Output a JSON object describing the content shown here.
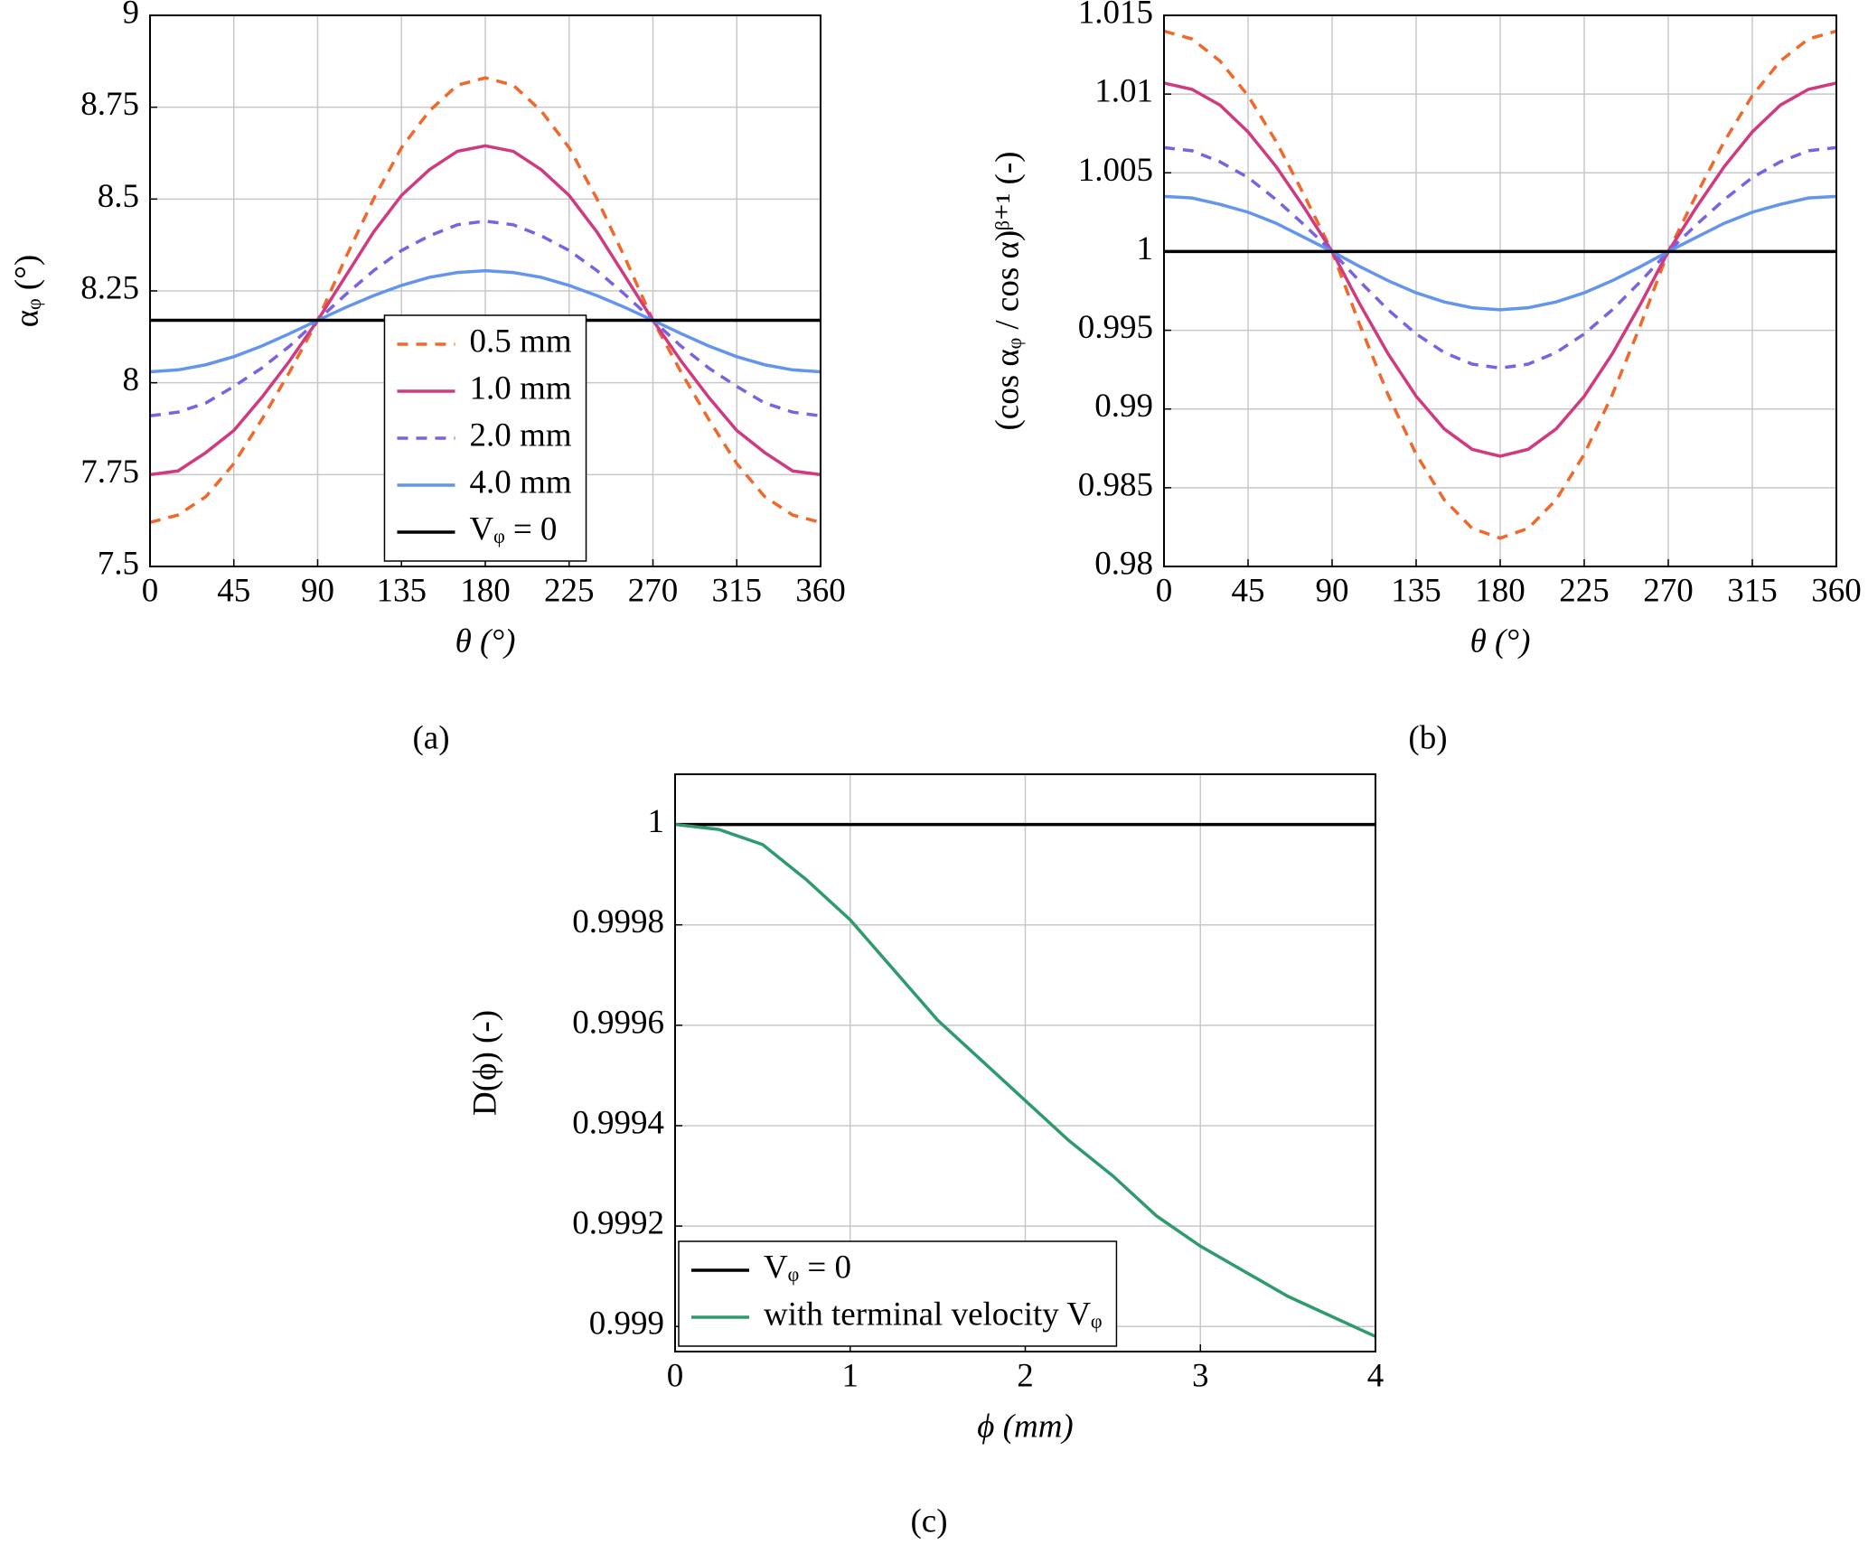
{
  "chart_data": [
    {
      "type": "line",
      "caption": "(a)",
      "xlabel": "θ (°)",
      "ylabel": "αᵩ (°)",
      "xlim": [
        0,
        360
      ],
      "ylim": [
        7.5,
        9
      ],
      "xticks": [
        0,
        45,
        90,
        135,
        180,
        225,
        270,
        315,
        360
      ],
      "yticks": [
        7.5,
        7.75,
        8,
        8.25,
        8.5,
        8.75,
        9
      ],
      "grid": true,
      "legend": "lower center",
      "x": [
        0,
        15,
        30,
        45,
        60,
        75,
        90,
        105,
        120,
        135,
        150,
        165,
        180,
        195,
        210,
        225,
        240,
        255,
        270,
        285,
        300,
        315,
        330,
        345,
        360
      ],
      "series": [
        {
          "name": "0.5 mm",
          "color": "#f0682a",
          "style": "dashed",
          "values": [
            7.62,
            7.64,
            7.69,
            7.78,
            7.9,
            8.03,
            8.17,
            8.34,
            8.5,
            8.64,
            8.74,
            8.81,
            8.83,
            8.81,
            8.74,
            8.64,
            8.5,
            8.34,
            8.17,
            8.03,
            7.9,
            7.78,
            7.69,
            7.64,
            7.62
          ]
        },
        {
          "name": "1.0 mm",
          "color": "#d03a7e",
          "style": "solid",
          "values": [
            7.75,
            7.76,
            7.81,
            7.87,
            7.96,
            8.06,
            8.17,
            8.29,
            8.41,
            8.51,
            8.58,
            8.63,
            8.645,
            8.63,
            8.58,
            8.51,
            8.41,
            8.29,
            8.17,
            8.06,
            7.96,
            7.87,
            7.81,
            7.76,
            7.75
          ]
        },
        {
          "name": "2.0 mm",
          "color": "#7a62e0",
          "style": "dashed",
          "values": [
            7.91,
            7.92,
            7.945,
            7.99,
            8.04,
            8.1,
            8.17,
            8.24,
            8.305,
            8.36,
            8.4,
            8.43,
            8.44,
            8.43,
            8.4,
            8.36,
            8.305,
            8.24,
            8.17,
            8.1,
            8.04,
            7.99,
            7.945,
            7.92,
            7.91
          ]
        },
        {
          "name": "4.0 mm",
          "color": "#6495ed",
          "style": "solid",
          "values": [
            8.03,
            8.035,
            8.049,
            8.071,
            8.1,
            8.134,
            8.17,
            8.205,
            8.237,
            8.265,
            8.287,
            8.3,
            8.305,
            8.3,
            8.287,
            8.265,
            8.237,
            8.205,
            8.17,
            8.134,
            8.1,
            8.071,
            8.049,
            8.035,
            8.03
          ]
        },
        {
          "name": "Vᵩ = 0",
          "color": "#000000",
          "style": "solid",
          "values": [
            8.17,
            8.17,
            8.17,
            8.17,
            8.17,
            8.17,
            8.17,
            8.17,
            8.17,
            8.17,
            8.17,
            8.17,
            8.17,
            8.17,
            8.17,
            8.17,
            8.17,
            8.17,
            8.17,
            8.17,
            8.17,
            8.17,
            8.17,
            8.17,
            8.17
          ]
        }
      ]
    },
    {
      "type": "line",
      "caption": "(b)",
      "xlabel": "θ (°)",
      "ylabel": "(cos αᵩ / cos α)ᵝ⁺¹ (-)",
      "xlim": [
        0,
        360
      ],
      "ylim": [
        0.98,
        1.015
      ],
      "xticks": [
        0,
        45,
        90,
        135,
        180,
        225,
        270,
        315,
        360
      ],
      "yticks": [
        0.98,
        0.985,
        0.99,
        0.995,
        1,
        1.005,
        1.01,
        1.015
      ],
      "grid": true,
      "legend": "none",
      "x": [
        0,
        15,
        30,
        45,
        60,
        75,
        90,
        105,
        120,
        135,
        150,
        165,
        180,
        195,
        210,
        225,
        240,
        255,
        270,
        285,
        300,
        315,
        330,
        345,
        360
      ],
      "series": [
        {
          "name": "0.5 mm",
          "color": "#f0682a",
          "style": "dashed",
          "values": [
            1.014,
            1.0135,
            1.0121,
            1.0099,
            1.007,
            1.0036,
            1,
            0.99529,
            0.9909,
            0.98713,
            0.98424,
            0.98242,
            0.9818,
            0.98242,
            0.98424,
            0.98713,
            0.9909,
            0.99529,
            1,
            1.0036,
            1.007,
            1.0099,
            1.0121,
            1.0135,
            1.014
          ]
        },
        {
          "name": "1.0 mm",
          "color": "#d03a7e",
          "style": "solid",
          "values": [
            1.0107,
            1.0103,
            1.0093,
            1.0076,
            1.0054,
            1.0028,
            1,
            0.99663,
            0.9935,
            0.99081,
            0.98874,
            0.98744,
            0.987,
            0.98744,
            0.98874,
            0.99081,
            0.9935,
            0.99663,
            1,
            1.0028,
            1.0054,
            1.0076,
            1.0093,
            1.0103,
            1.0107
          ]
        },
        {
          "name": "2.0 mm",
          "color": "#7a62e0",
          "style": "dashed",
          "values": [
            1.0066,
            1.0064,
            1.0057,
            1.0047,
            1.0033,
            1.0017,
            1,
            0.99808,
            0.9963,
            0.99477,
            0.99359,
            0.99285,
            0.9926,
            0.99285,
            0.99359,
            0.99477,
            0.9963,
            0.99808,
            1,
            1.0017,
            1.0033,
            1.0047,
            1.0057,
            1.0064,
            1.0066
          ]
        },
        {
          "name": "4.0 mm",
          "color": "#6495ed",
          "style": "solid",
          "values": [
            1.0035,
            1.0034,
            1.003,
            1.0025,
            1.0018,
            1.0009,
            1,
            0.99904,
            0.99815,
            0.99738,
            0.9968,
            0.99643,
            0.9963,
            0.99643,
            0.9968,
            0.99738,
            0.99815,
            0.99904,
            1,
            1.0009,
            1.0018,
            1.0025,
            1.003,
            1.0034,
            1.0035
          ]
        },
        {
          "name": "Vᵩ = 0",
          "color": "#000000",
          "style": "solid",
          "values": [
            1,
            1,
            1,
            1,
            1,
            1,
            1,
            1,
            1,
            1,
            1,
            1,
            1,
            1,
            1,
            1,
            1,
            1,
            1,
            1,
            1,
            1,
            1,
            1,
            1
          ]
        }
      ]
    },
    {
      "type": "line",
      "caption": "(c)",
      "xlabel": "ϕ (mm)",
      "ylabel": "D(ϕ) (-)",
      "xlim": [
        0,
        4
      ],
      "ylim": [
        0.99895,
        1.0001
      ],
      "xticks": [
        0,
        1,
        2,
        3,
        4
      ],
      "yticks": [
        0.999,
        0.9992,
        0.9994,
        0.9996,
        0.9998,
        1
      ],
      "grid": true,
      "legend": "lower left",
      "x": [
        0,
        0.25,
        0.5,
        0.75,
        1,
        1.25,
        1.5,
        1.75,
        2,
        2.25,
        2.5,
        2.75,
        3,
        3.25,
        3.5,
        3.75,
        4
      ],
      "series": [
        {
          "name": "Vᵩ = 0",
          "color": "#000000",
          "style": "solid",
          "values": [
            1,
            1,
            1,
            1,
            1,
            1,
            1,
            1,
            1,
            1,
            1,
            1,
            1,
            1,
            1,
            1,
            1
          ]
        },
        {
          "name": "with terminal velocity Vᵩ",
          "color": "#2e9a6e",
          "style": "solid",
          "values": [
            1,
            0.99999,
            0.99996,
            0.99989,
            0.99981,
            0.99971,
            0.99961,
            0.99953,
            0.99945,
            0.99937,
            0.9993,
            0.99922,
            0.99916,
            0.99911,
            0.99906,
            0.99902,
            0.99898
          ]
        }
      ]
    }
  ]
}
